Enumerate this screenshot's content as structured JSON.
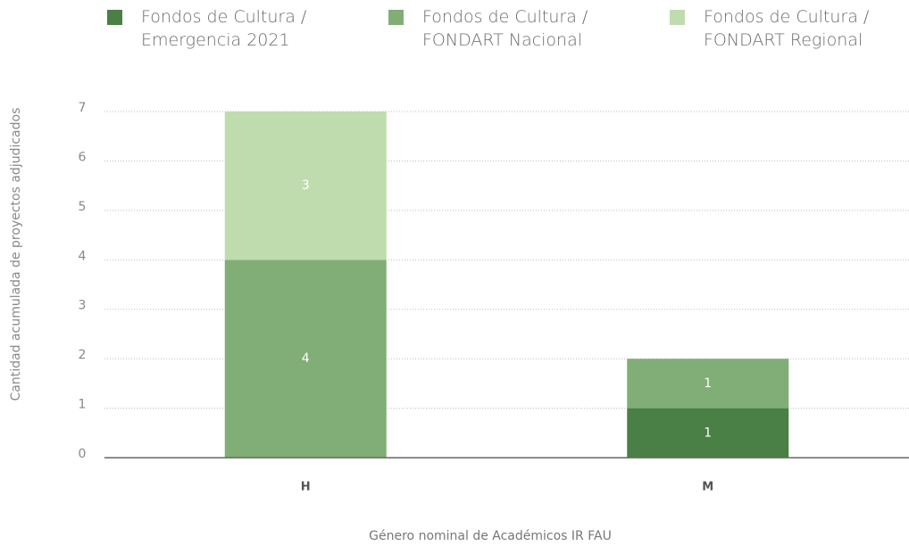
{
  "chart_data": {
    "type": "stacked_bar",
    "x_label": "Género nominal de Académicos IR FAU",
    "y_label": "Cantidad acumulada de proyectos adjudicados",
    "categories": [
      "H",
      "M"
    ],
    "series": [
      {
        "name": "Fondos de Cultura / Emergencia 2021",
        "color": "#4a7f45",
        "values": [
          0,
          1
        ]
      },
      {
        "name": "Fondos de Cultura / FONDART Nacional",
        "color": "#80ae76",
        "values": [
          4,
          1
        ]
      },
      {
        "name": "Fondos de Cultura / FONDART Regional",
        "color": "#bfdcae",
        "values": [
          3,
          0
        ]
      }
    ],
    "ylim": [
      0,
      7
    ],
    "yticks": [
      0,
      1,
      2,
      3,
      4,
      5,
      6,
      7
    ],
    "grid": true,
    "legend": "top"
  }
}
